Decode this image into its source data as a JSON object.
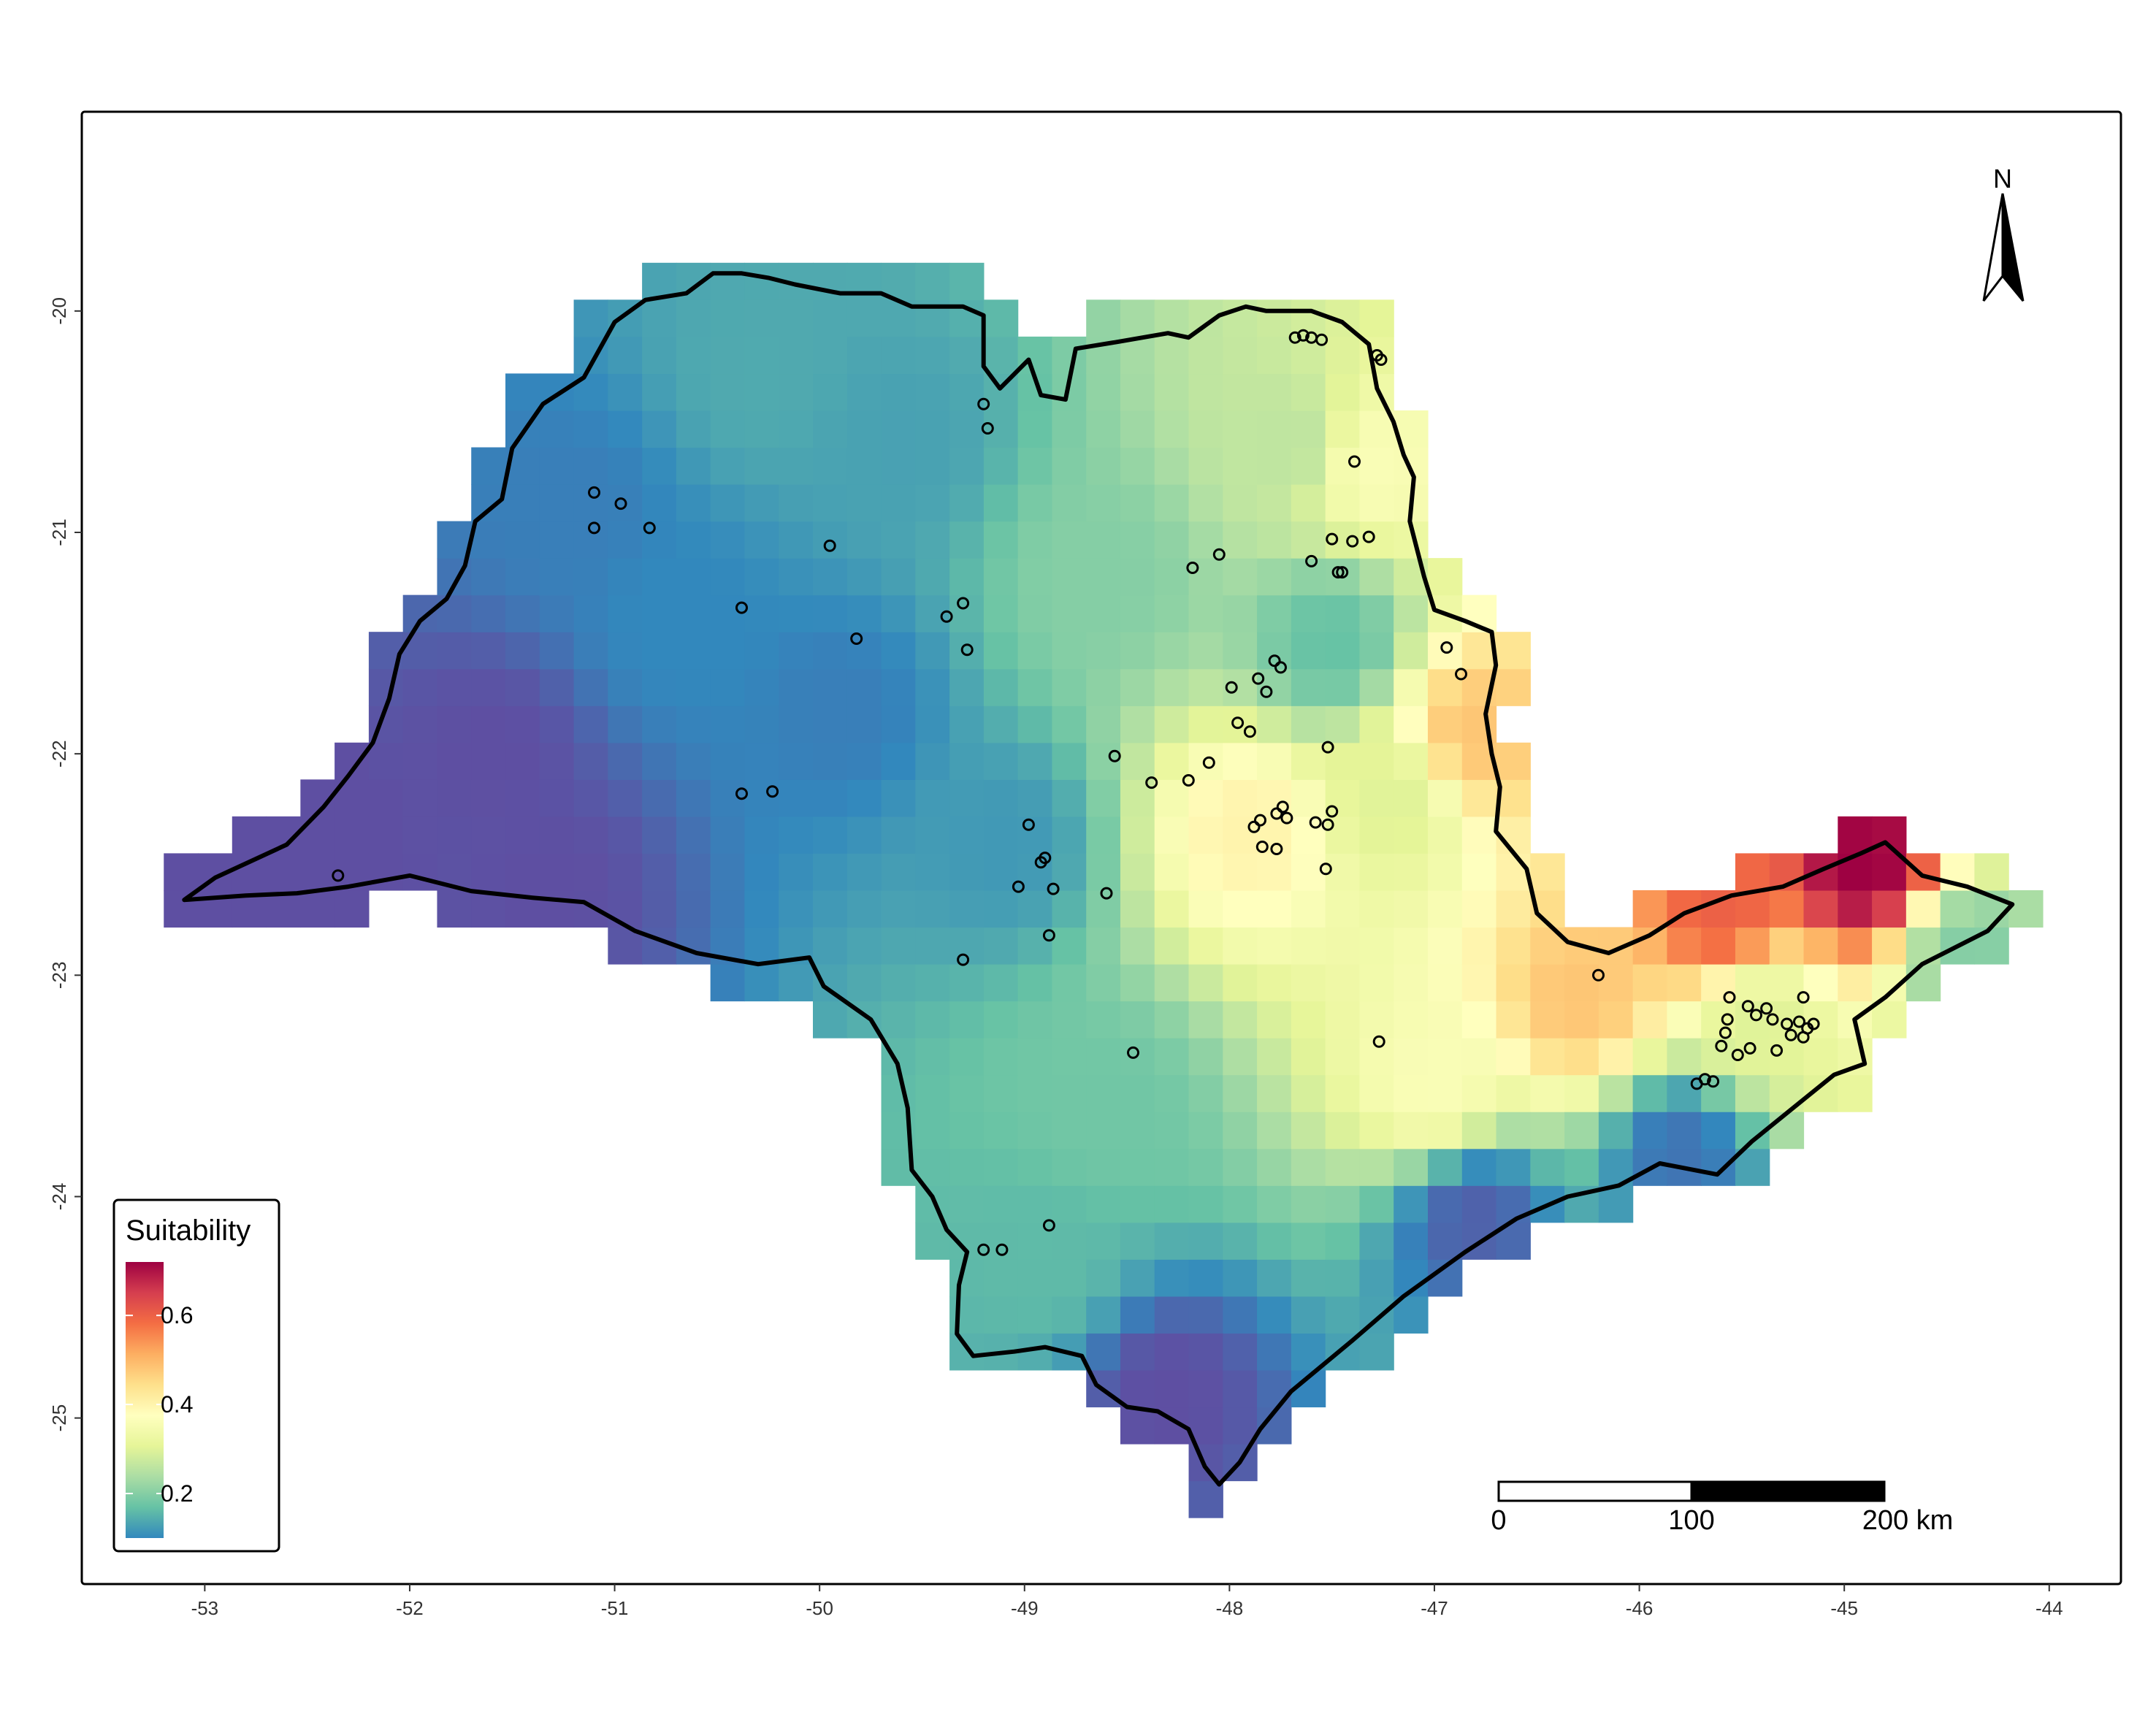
{
  "chart_data": {
    "type": "heatmap",
    "title": "",
    "xlabel": "",
    "ylabel": "",
    "xlim": [
      -53.6,
      -43.65
    ],
    "ylim": [
      -25.75,
      -19.1
    ],
    "x_ticks": [
      -53,
      -52,
      -51,
      -50,
      -49,
      -48,
      -47,
      -46,
      -45,
      -44
    ],
    "y_ticks": [
      -25,
      -24,
      -23,
      -22,
      -21,
      -20
    ],
    "x_tick_labels": [
      "-53",
      "-52",
      "-51",
      "-50",
      "-49",
      "-48",
      "-47",
      "-46",
      "-45",
      "-44"
    ],
    "y_tick_labels": [
      "-25",
      "-24",
      "-23",
      "-22",
      "-21",
      "-20"
    ],
    "grid": false,
    "legend": {
      "title": "Suitability",
      "placement": "bottom-left",
      "range": [
        0.1,
        0.72
      ],
      "breaks": [
        0.2,
        0.4,
        0.6
      ],
      "break_labels": [
        "0.2",
        "0.4",
        "0.6"
      ],
      "palette": [
        "#3288bd",
        "#66c2a5",
        "#abdda4",
        "#e6f598",
        "#ffffbf",
        "#fee08b",
        "#fdae61",
        "#f46d43",
        "#d53e4f",
        "#9e0142"
      ]
    },
    "low_color": "#5e4fa2",
    "cell_size_deg": 0.1667,
    "suitability_anchors": [
      {
        "lon": -52.6,
        "lat": -22.5,
        "value": 0.03
      },
      {
        "lon": -51.6,
        "lat": -22.0,
        "value": 0.04
      },
      {
        "lon": -51.3,
        "lat": -22.6,
        "value": 0.04
      },
      {
        "lon": -51.2,
        "lat": -20.9,
        "value": 0.09
      },
      {
        "lon": -50.7,
        "lat": -21.4,
        "value": 0.1
      },
      {
        "lon": -50.3,
        "lat": -20.3,
        "value": 0.14
      },
      {
        "lon": -49.9,
        "lat": -21.8,
        "value": 0.09
      },
      {
        "lon": -49.6,
        "lat": -20.6,
        "value": 0.13
      },
      {
        "lon": -49.1,
        "lat": -22.4,
        "value": 0.12
      },
      {
        "lon": -48.6,
        "lat": -21.2,
        "value": 0.2
      },
      {
        "lon": -47.7,
        "lat": -20.6,
        "value": 0.26
      },
      {
        "lon": -47.3,
        "lat": -20.7,
        "value": 0.36
      },
      {
        "lon": -47.5,
        "lat": -21.5,
        "value": 0.17
      },
      {
        "lon": -47.9,
        "lat": -22.35,
        "value": 0.4
      },
      {
        "lon": -47.2,
        "lat": -22.2,
        "value": 0.3
      },
      {
        "lon": -46.8,
        "lat": -21.9,
        "value": 0.48
      },
      {
        "lon": -47.0,
        "lat": -23.5,
        "value": 0.36
      },
      {
        "lon": -46.3,
        "lat": -23.1,
        "value": 0.48
      },
      {
        "lon": -45.4,
        "lat": -23.2,
        "value": 0.3
      },
      {
        "lon": -44.9,
        "lat": -22.5,
        "value": 0.72
      },
      {
        "lon": -45.6,
        "lat": -22.7,
        "value": 0.6
      },
      {
        "lon": -44.4,
        "lat": -22.9,
        "value": 0.2
      },
      {
        "lon": -48.9,
        "lat": -24.3,
        "value": 0.16
      },
      {
        "lon": -48.3,
        "lat": -24.9,
        "value": 0.04
      },
      {
        "lon": -46.8,
        "lat": -24.1,
        "value": 0.06
      },
      {
        "lon": -45.8,
        "lat": -23.8,
        "value": 0.08
      },
      {
        "lon": -48.6,
        "lat": -23.6,
        "value": 0.18
      }
    ],
    "occurrence_points": [
      [
        -52.35,
        -22.55
      ],
      [
        -51.1,
        -20.82
      ],
      [
        -51.1,
        -20.98
      ],
      [
        -50.97,
        -20.87
      ],
      [
        -50.83,
        -20.98
      ],
      [
        -50.38,
        -21.34
      ],
      [
        -50.38,
        -22.18
      ],
      [
        -50.23,
        -22.17
      ],
      [
        -49.95,
        -21.06
      ],
      [
        -49.82,
        -21.48
      ],
      [
        -49.38,
        -21.38
      ],
      [
        -49.3,
        -21.32
      ],
      [
        -49.28,
        -21.53
      ],
      [
        -49.2,
        -20.42
      ],
      [
        -49.18,
        -20.53
      ],
      [
        -48.98,
        -22.32
      ],
      [
        -48.92,
        -22.49
      ],
      [
        -48.9,
        -22.47
      ],
      [
        -48.86,
        -22.61
      ],
      [
        -49.03,
        -22.6
      ],
      [
        -48.88,
        -22.82
      ],
      [
        -49.3,
        -22.93
      ],
      [
        -48.6,
        -22.63
      ],
      [
        -48.56,
        -22.01
      ],
      [
        -48.38,
        -22.13
      ],
      [
        -48.18,
        -21.16
      ],
      [
        -48.05,
        -21.1
      ],
      [
        -47.99,
        -21.7
      ],
      [
        -47.96,
        -21.86
      ],
      [
        -47.9,
        -21.9
      ],
      [
        -47.86,
        -21.66
      ],
      [
        -47.82,
        -21.72
      ],
      [
        -47.78,
        -21.58
      ],
      [
        -47.75,
        -21.61
      ],
      [
        -47.88,
        -22.33
      ],
      [
        -47.85,
        -22.3
      ],
      [
        -47.84,
        -22.42
      ],
      [
        -47.77,
        -22.27
      ],
      [
        -47.74,
        -22.24
      ],
      [
        -47.72,
        -22.29
      ],
      [
        -47.77,
        -22.43
      ],
      [
        -47.58,
        -22.31
      ],
      [
        -47.52,
        -22.32
      ],
      [
        -47.5,
        -22.26
      ],
      [
        -47.53,
        -22.52
      ],
      [
        -47.52,
        -21.97
      ],
      [
        -48.1,
        -22.04
      ],
      [
        -48.2,
        -22.12
      ],
      [
        -47.5,
        -21.03
      ],
      [
        -47.45,
        -21.18
      ],
      [
        -47.47,
        -21.18
      ],
      [
        -47.4,
        -21.04
      ],
      [
        -47.32,
        -21.02
      ],
      [
        -47.6,
        -21.13
      ],
      [
        -47.39,
        -20.68
      ],
      [
        -47.68,
        -20.12
      ],
      [
        -47.64,
        -20.11
      ],
      [
        -47.6,
        -20.12
      ],
      [
        -47.55,
        -20.13
      ],
      [
        -47.28,
        -20.2
      ],
      [
        -47.26,
        -20.22
      ],
      [
        -46.94,
        -21.52
      ],
      [
        -46.87,
        -21.64
      ],
      [
        -46.2,
        -23.0
      ],
      [
        -47.27,
        -23.3
      ],
      [
        -48.47,
        -23.35
      ],
      [
        -48.88,
        -24.13
      ],
      [
        -49.2,
        -24.24
      ],
      [
        -49.11,
        -24.24
      ],
      [
        -45.68,
        -23.47
      ],
      [
        -45.72,
        -23.49
      ],
      [
        -45.64,
        -23.48
      ],
      [
        -45.56,
        -23.1
      ],
      [
        -45.47,
        -23.14
      ],
      [
        -45.43,
        -23.18
      ],
      [
        -45.38,
        -23.15
      ],
      [
        -45.35,
        -23.2
      ],
      [
        -45.57,
        -23.2
      ],
      [
        -45.58,
        -23.26
      ],
      [
        -45.52,
        -23.36
      ],
      [
        -45.46,
        -23.33
      ],
      [
        -45.6,
        -23.32
      ],
      [
        -45.28,
        -23.22
      ],
      [
        -45.22,
        -23.21
      ],
      [
        -45.18,
        -23.24
      ],
      [
        -45.26,
        -23.27
      ],
      [
        -45.2,
        -23.28
      ],
      [
        -45.15,
        -23.22
      ],
      [
        -45.2,
        -23.1
      ],
      [
        -45.33,
        -23.34
      ]
    ],
    "state_boundary_lonlat": [
      [
        -53.1,
        -22.66
      ],
      [
        -52.95,
        -22.56
      ],
      [
        -52.6,
        -22.41
      ],
      [
        -52.42,
        -22.24
      ],
      [
        -52.3,
        -22.1
      ],
      [
        -52.18,
        -21.95
      ],
      [
        -52.1,
        -21.75
      ],
      [
        -52.05,
        -21.55
      ],
      [
        -51.95,
        -21.4
      ],
      [
        -51.82,
        -21.3
      ],
      [
        -51.73,
        -21.15
      ],
      [
        -51.68,
        -20.95
      ],
      [
        -51.55,
        -20.85
      ],
      [
        -51.5,
        -20.62
      ],
      [
        -51.35,
        -20.42
      ],
      [
        -51.15,
        -20.3
      ],
      [
        -51.0,
        -20.05
      ],
      [
        -50.85,
        -19.95
      ],
      [
        -50.65,
        -19.92
      ],
      [
        -50.52,
        -19.83
      ],
      [
        -50.38,
        -19.83
      ],
      [
        -50.25,
        -19.85
      ],
      [
        -50.12,
        -19.88
      ],
      [
        -49.9,
        -19.92
      ],
      [
        -49.7,
        -19.92
      ],
      [
        -49.55,
        -19.98
      ],
      [
        -49.3,
        -19.98
      ],
      [
        -49.2,
        -20.02
      ],
      [
        -49.2,
        -20.25
      ],
      [
        -49.12,
        -20.35
      ],
      [
        -48.98,
        -20.22
      ],
      [
        -48.92,
        -20.38
      ],
      [
        -48.8,
        -20.4
      ],
      [
        -48.75,
        -20.17
      ],
      [
        -48.55,
        -20.14
      ],
      [
        -48.3,
        -20.1
      ],
      [
        -48.2,
        -20.12
      ],
      [
        -48.05,
        -20.02
      ],
      [
        -47.92,
        -19.98
      ],
      [
        -47.82,
        -20.0
      ],
      [
        -47.6,
        -20.0
      ],
      [
        -47.45,
        -20.05
      ],
      [
        -47.32,
        -20.15
      ],
      [
        -47.28,
        -20.35
      ],
      [
        -47.2,
        -20.5
      ],
      [
        -47.15,
        -20.65
      ],
      [
        -47.1,
        -20.75
      ],
      [
        -47.12,
        -20.95
      ],
      [
        -47.05,
        -21.2
      ],
      [
        -47.0,
        -21.35
      ],
      [
        -46.85,
        -21.4
      ],
      [
        -46.72,
        -21.45
      ],
      [
        -46.7,
        -21.6
      ],
      [
        -46.75,
        -21.82
      ],
      [
        -46.72,
        -22.0
      ],
      [
        -46.68,
        -22.15
      ],
      [
        -46.7,
        -22.35
      ],
      [
        -46.55,
        -22.52
      ],
      [
        -46.5,
        -22.72
      ],
      [
        -46.35,
        -22.85
      ],
      [
        -46.15,
        -22.9
      ],
      [
        -45.95,
        -22.82
      ],
      [
        -45.78,
        -22.72
      ],
      [
        -45.55,
        -22.64
      ],
      [
        -45.3,
        -22.6
      ],
      [
        -45.1,
        -22.52
      ],
      [
        -44.92,
        -22.45
      ],
      [
        -44.8,
        -22.4
      ],
      [
        -44.62,
        -22.55
      ],
      [
        -44.4,
        -22.6
      ],
      [
        -44.18,
        -22.68
      ],
      [
        -44.3,
        -22.8
      ],
      [
        -44.62,
        -22.95
      ],
      [
        -44.8,
        -23.1
      ],
      [
        -44.95,
        -23.2
      ],
      [
        -44.9,
        -23.4
      ],
      [
        -45.05,
        -23.45
      ],
      [
        -45.25,
        -23.6
      ],
      [
        -45.45,
        -23.75
      ],
      [
        -45.62,
        -23.9
      ],
      [
        -45.9,
        -23.85
      ],
      [
        -46.1,
        -23.95
      ],
      [
        -46.35,
        -24.0
      ],
      [
        -46.6,
        -24.1
      ],
      [
        -46.85,
        -24.25
      ],
      [
        -47.15,
        -24.45
      ],
      [
        -47.4,
        -24.65
      ],
      [
        -47.7,
        -24.88
      ],
      [
        -47.85,
        -25.05
      ],
      [
        -47.95,
        -25.2
      ],
      [
        -48.05,
        -25.3
      ],
      [
        -48.12,
        -25.22
      ],
      [
        -48.2,
        -25.05
      ],
      [
        -48.35,
        -24.97
      ],
      [
        -48.5,
        -24.95
      ],
      [
        -48.65,
        -24.85
      ],
      [
        -48.72,
        -24.72
      ],
      [
        -48.9,
        -24.68
      ],
      [
        -49.05,
        -24.7
      ],
      [
        -49.25,
        -24.72
      ],
      [
        -49.33,
        -24.62
      ],
      [
        -49.32,
        -24.4
      ],
      [
        -49.28,
        -24.25
      ],
      [
        -49.38,
        -24.15
      ],
      [
        -49.45,
        -24.0
      ],
      [
        -49.55,
        -23.88
      ],
      [
        -49.57,
        -23.6
      ],
      [
        -49.62,
        -23.4
      ],
      [
        -49.75,
        -23.2
      ],
      [
        -49.98,
        -23.05
      ],
      [
        -50.05,
        -22.92
      ],
      [
        -50.3,
        -22.95
      ],
      [
        -50.6,
        -22.9
      ],
      [
        -50.9,
        -22.8
      ],
      [
        -51.15,
        -22.67
      ],
      [
        -51.4,
        -22.65
      ],
      [
        -51.7,
        -22.62
      ],
      [
        -52.0,
        -22.55
      ],
      [
        -52.3,
        -22.6
      ],
      [
        -52.55,
        -22.63
      ],
      [
        -52.8,
        -22.64
      ],
      [
        -53.1,
        -22.66
      ]
    ]
  },
  "north_arrow": {
    "label": "N"
  },
  "scale_bar": {
    "labels": [
      "0",
      "100",
      "200 km"
    ],
    "segment_km": 100
  }
}
